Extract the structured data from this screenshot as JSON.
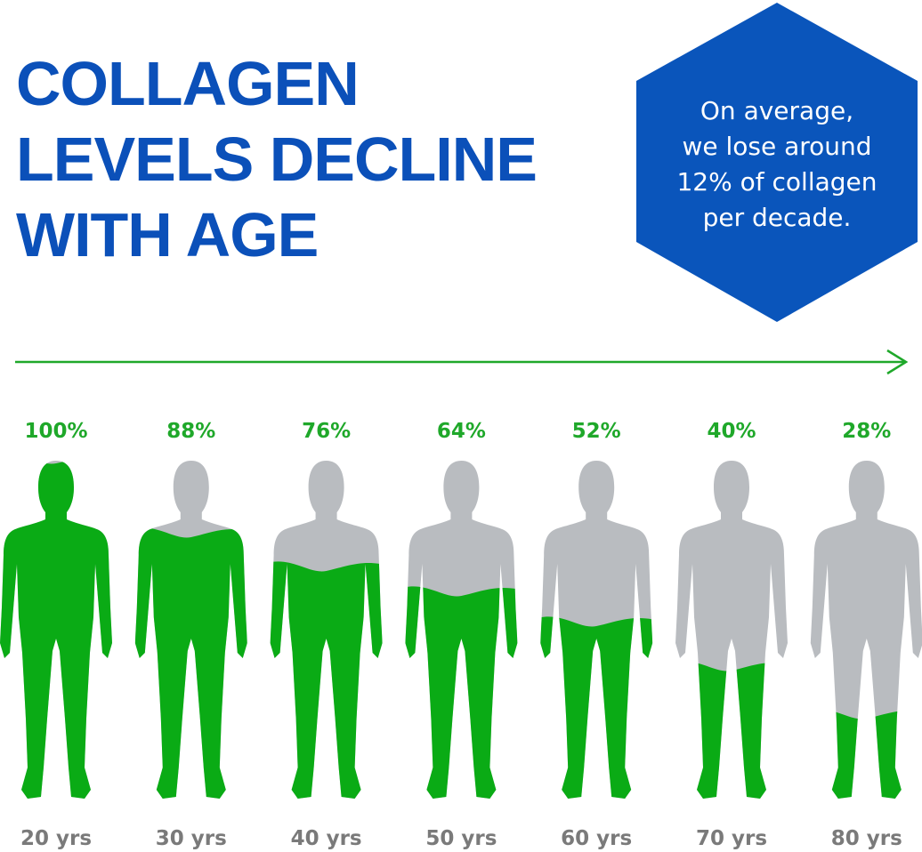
{
  "title_lines": [
    "COLLAGEN",
    "LEVELS DECLINE",
    "WITH AGE"
  ],
  "callout_lines": [
    "On average,",
    "we lose around",
    "12% of collagen",
    "per decade."
  ],
  "colors": {
    "title": "#0b50b9",
    "hexagon": "#0a55bb",
    "collagen_fill": "#0aab15",
    "depleted_fill": "#b9bcc0",
    "age_label": "#7a7a7a",
    "arrow": "#1fa82a"
  },
  "chart_data": {
    "type": "pictograph",
    "categories": [
      "20 yrs",
      "30 yrs",
      "40 yrs",
      "50 yrs",
      "60 yrs",
      "70 yrs",
      "80 yrs"
    ],
    "labels": [
      "100%",
      "88%",
      "76%",
      "64%",
      "52%",
      "40%",
      "28%"
    ],
    "values": [
      100,
      88,
      76,
      64,
      52,
      40,
      28
    ],
    "unit": "%"
  }
}
